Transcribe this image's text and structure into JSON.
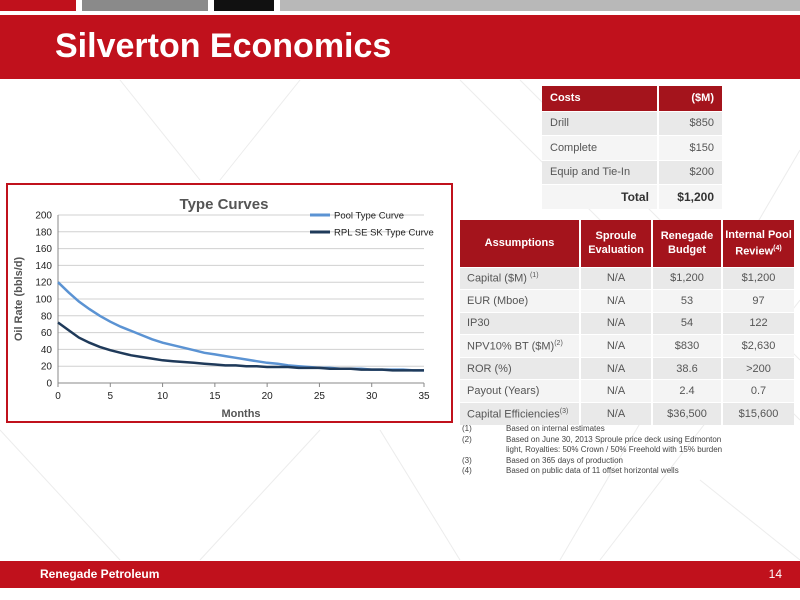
{
  "slide": {
    "title": "Silverton Economics",
    "footer_company": "Renegade Petroleum",
    "page_number": "14",
    "brand_color": "#c0111c"
  },
  "costs": {
    "header_label": "Costs",
    "header_unit": "($M)",
    "rows": [
      {
        "label": "Drill",
        "value": "$850"
      },
      {
        "label": "Complete",
        "value": "$150"
      },
      {
        "label": "Equip and Tie-In",
        "value": "$200"
      }
    ],
    "total_label": "Total",
    "total_value": "$1,200"
  },
  "assumptions": {
    "headers": [
      "Assumptions",
      "Sproule Evaluation",
      "Renegade Budget",
      "Internal Pool Review"
    ],
    "header_4_sup": "(4)",
    "rows": [
      {
        "label": "Capital ($M)",
        "sup": "(1)",
        "sproule": "N/A",
        "renegade": "$1,200",
        "internal": "$1,200"
      },
      {
        "label": "EUR (Mboe)",
        "sup": "",
        "sproule": "N/A",
        "renegade": "53",
        "internal": "97"
      },
      {
        "label": "IP30",
        "sup": "",
        "sproule": "N/A",
        "renegade": "54",
        "internal": "122"
      },
      {
        "label": "NPV10% BT ($M)",
        "sup": "(2)",
        "sproule": "N/A",
        "renegade": "$830",
        "internal": "$2,630"
      },
      {
        "label": "ROR (%)",
        "sup": "",
        "sproule": "N/A",
        "renegade": "38.6",
        "internal": ">200"
      },
      {
        "label": "Payout (Years)",
        "sup": "",
        "sproule": "N/A",
        "renegade": "2.4",
        "internal": "0.7"
      },
      {
        "label": "Capital Efficiencies",
        "sup": "(3)",
        "sproule": "N/A",
        "renegade": "$36,500",
        "internal": "$15,600"
      }
    ]
  },
  "footnotes": [
    {
      "num": "(1)",
      "lines": [
        "Based on internal estimates"
      ]
    },
    {
      "num": "(2)",
      "lines": [
        "Based on June 30, 2013 Sproule price deck using Edmonton",
        "light, Royalties: 50% Crown / 50% Freehold with 15% burden"
      ]
    },
    {
      "num": "(3)",
      "lines": [
        "Based on 365 days of production"
      ]
    },
    {
      "num": "(4)",
      "lines": [
        "Based on public data of 11 offset horizontal wells"
      ]
    }
  ],
  "chart_data": {
    "type": "line",
    "title": "Type Curves",
    "xlabel": "Months",
    "ylabel": "Oil Rate (bbls/d)",
    "xlim": [
      0,
      35
    ],
    "ylim": [
      0,
      200
    ],
    "xticks": [
      0,
      5,
      10,
      15,
      20,
      25,
      30,
      35
    ],
    "yticks": [
      0,
      20,
      40,
      60,
      80,
      100,
      120,
      140,
      160,
      180,
      200
    ],
    "grid": "horizontal",
    "legend_position": "top-right",
    "series": [
      {
        "name": "Pool Type Curve",
        "color": "#5b93d3",
        "x": [
          0,
          1,
          2,
          3,
          4,
          5,
          6,
          7,
          8,
          9,
          10,
          11,
          12,
          13,
          14,
          15,
          16,
          17,
          18,
          19,
          20,
          21,
          22,
          23,
          24,
          25,
          26,
          27,
          28,
          29,
          30,
          31,
          32,
          33,
          34,
          35
        ],
        "values": [
          120,
          108,
          97,
          88,
          80,
          73,
          67,
          62,
          57,
          52,
          48,
          45,
          42,
          39,
          36,
          34,
          32,
          30,
          28,
          26,
          24,
          23,
          21,
          20,
          19,
          18,
          18,
          17,
          17,
          17,
          16,
          16,
          16,
          16,
          15,
          15
        ]
      },
      {
        "name": "RPL SE SK Type Curve",
        "color": "#1f3a5a",
        "x": [
          0,
          1,
          2,
          3,
          4,
          5,
          6,
          7,
          8,
          9,
          10,
          11,
          12,
          13,
          14,
          15,
          16,
          17,
          18,
          19,
          20,
          21,
          22,
          23,
          24,
          25,
          26,
          27,
          28,
          29,
          30,
          31,
          32,
          33,
          34,
          35
        ],
        "values": [
          72,
          63,
          54,
          48,
          43,
          39,
          36,
          33,
          31,
          29,
          27,
          26,
          25,
          24,
          23,
          22,
          21,
          21,
          20,
          20,
          19,
          19,
          19,
          18,
          18,
          18,
          17,
          17,
          17,
          16,
          16,
          16,
          15,
          15,
          15,
          15
        ]
      }
    ]
  }
}
